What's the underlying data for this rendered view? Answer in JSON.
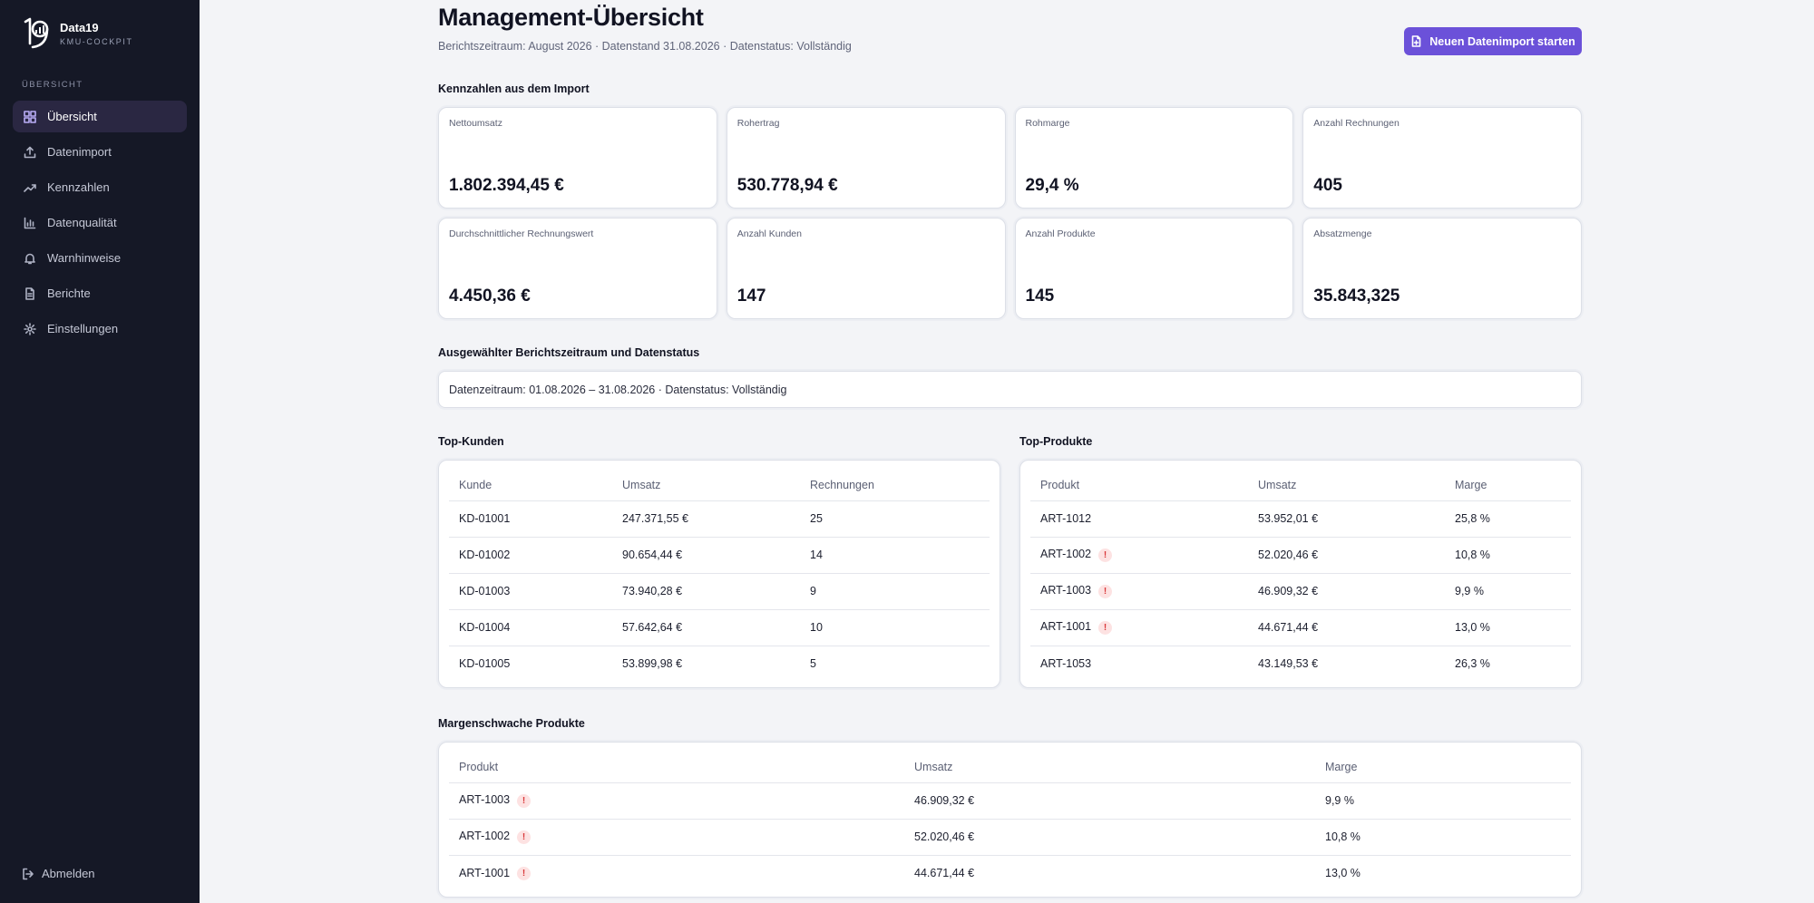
{
  "brand": {
    "name": "Data19",
    "subtitle": "KMU-COCKPIT"
  },
  "sidebar": {
    "section_label": "ÜBERSICHT",
    "items": [
      {
        "label": "Übersicht",
        "icon": "grid-icon",
        "active": true
      },
      {
        "label": "Datenimport",
        "icon": "upload-icon",
        "active": false
      },
      {
        "label": "Kennzahlen",
        "icon": "trending-up-icon",
        "active": false
      },
      {
        "label": "Datenqualität",
        "icon": "bar-chart-icon",
        "active": false
      },
      {
        "label": "Warnhinweise",
        "icon": "bell-icon",
        "active": false
      },
      {
        "label": "Berichte",
        "icon": "file-text-icon",
        "active": false
      },
      {
        "label": "Einstellungen",
        "icon": "gear-icon",
        "active": false
      }
    ],
    "logout_label": "Abmelden"
  },
  "header": {
    "title": "Management-Übersicht",
    "meta": "Berichtszeitraum: August 2026 · Datenstand 31.08.2026 · Datenstatus: Vollständig",
    "cta_label": "Neuen Datenimport starten"
  },
  "kpis": {
    "title": "Kennzahlen aus dem Import",
    "items": [
      {
        "label": "Nettoumsatz",
        "value": "1.802.394,45 €"
      },
      {
        "label": "Rohertrag",
        "value": "530.778,94 €"
      },
      {
        "label": "Rohmarge",
        "value": "29,4 %"
      },
      {
        "label": "Anzahl Rechnungen",
        "value": "405"
      },
      {
        "label": "Durchschnittlicher Rechnungswert",
        "value": "4.450,36 €"
      },
      {
        "label": "Anzahl Kunden",
        "value": "147"
      },
      {
        "label": "Anzahl Produkte",
        "value": "145"
      },
      {
        "label": "Absatzmenge",
        "value": "35.843,325"
      }
    ]
  },
  "status": {
    "title": "Ausgewählter Berichtszeitraum und Datenstatus",
    "text": "Datenzeitraum: 01.08.2026 – 31.08.2026 · Datenstatus: Vollständig"
  },
  "top_customers": {
    "title": "Top-Kunden",
    "columns": [
      "Kunde",
      "Umsatz",
      "Rechnungen"
    ],
    "rows": [
      [
        "KD-01001",
        "247.371,55 €",
        "25"
      ],
      [
        "KD-01002",
        "90.654,44 €",
        "14"
      ],
      [
        "KD-01003",
        "73.940,28 €",
        "9"
      ],
      [
        "KD-01004",
        "57.642,64 €",
        "10"
      ],
      [
        "KD-01005",
        "53.899,98 €",
        "5"
      ]
    ]
  },
  "top_products": {
    "title": "Top-Produkte",
    "columns": [
      "Produkt",
      "Umsatz",
      "Marge"
    ],
    "rows": [
      {
        "product": "ART-1012",
        "revenue": "53.952,01 €",
        "margin": "25,8 %",
        "warning": false
      },
      {
        "product": "ART-1002",
        "revenue": "52.020,46 €",
        "margin": "10,8 %",
        "warning": true
      },
      {
        "product": "ART-1003",
        "revenue": "46.909,32 €",
        "margin": "9,9 %",
        "warning": true
      },
      {
        "product": "ART-1001",
        "revenue": "44.671,44 €",
        "margin": "13,0 %",
        "warning": true
      },
      {
        "product": "ART-1053",
        "revenue": "43.149,53 €",
        "margin": "26,3 %",
        "warning": false
      }
    ]
  },
  "low_margin": {
    "title": "Margenschwache Produkte",
    "columns": [
      "Produkt",
      "Umsatz",
      "Marge"
    ],
    "rows": [
      {
        "product": "ART-1003",
        "revenue": "46.909,32 €",
        "margin": "9,9 %",
        "warning": true
      },
      {
        "product": "ART-1002",
        "revenue": "52.020,46 €",
        "margin": "10,8 %",
        "warning": true
      },
      {
        "product": "ART-1001",
        "revenue": "44.671,44 €",
        "margin": "13,0 %",
        "warning": true
      }
    ]
  },
  "warning_glyph": "!",
  "colors": {
    "accent": "#6b51d9",
    "sidebar_bg": "#151826",
    "warning": "#d9383a"
  }
}
